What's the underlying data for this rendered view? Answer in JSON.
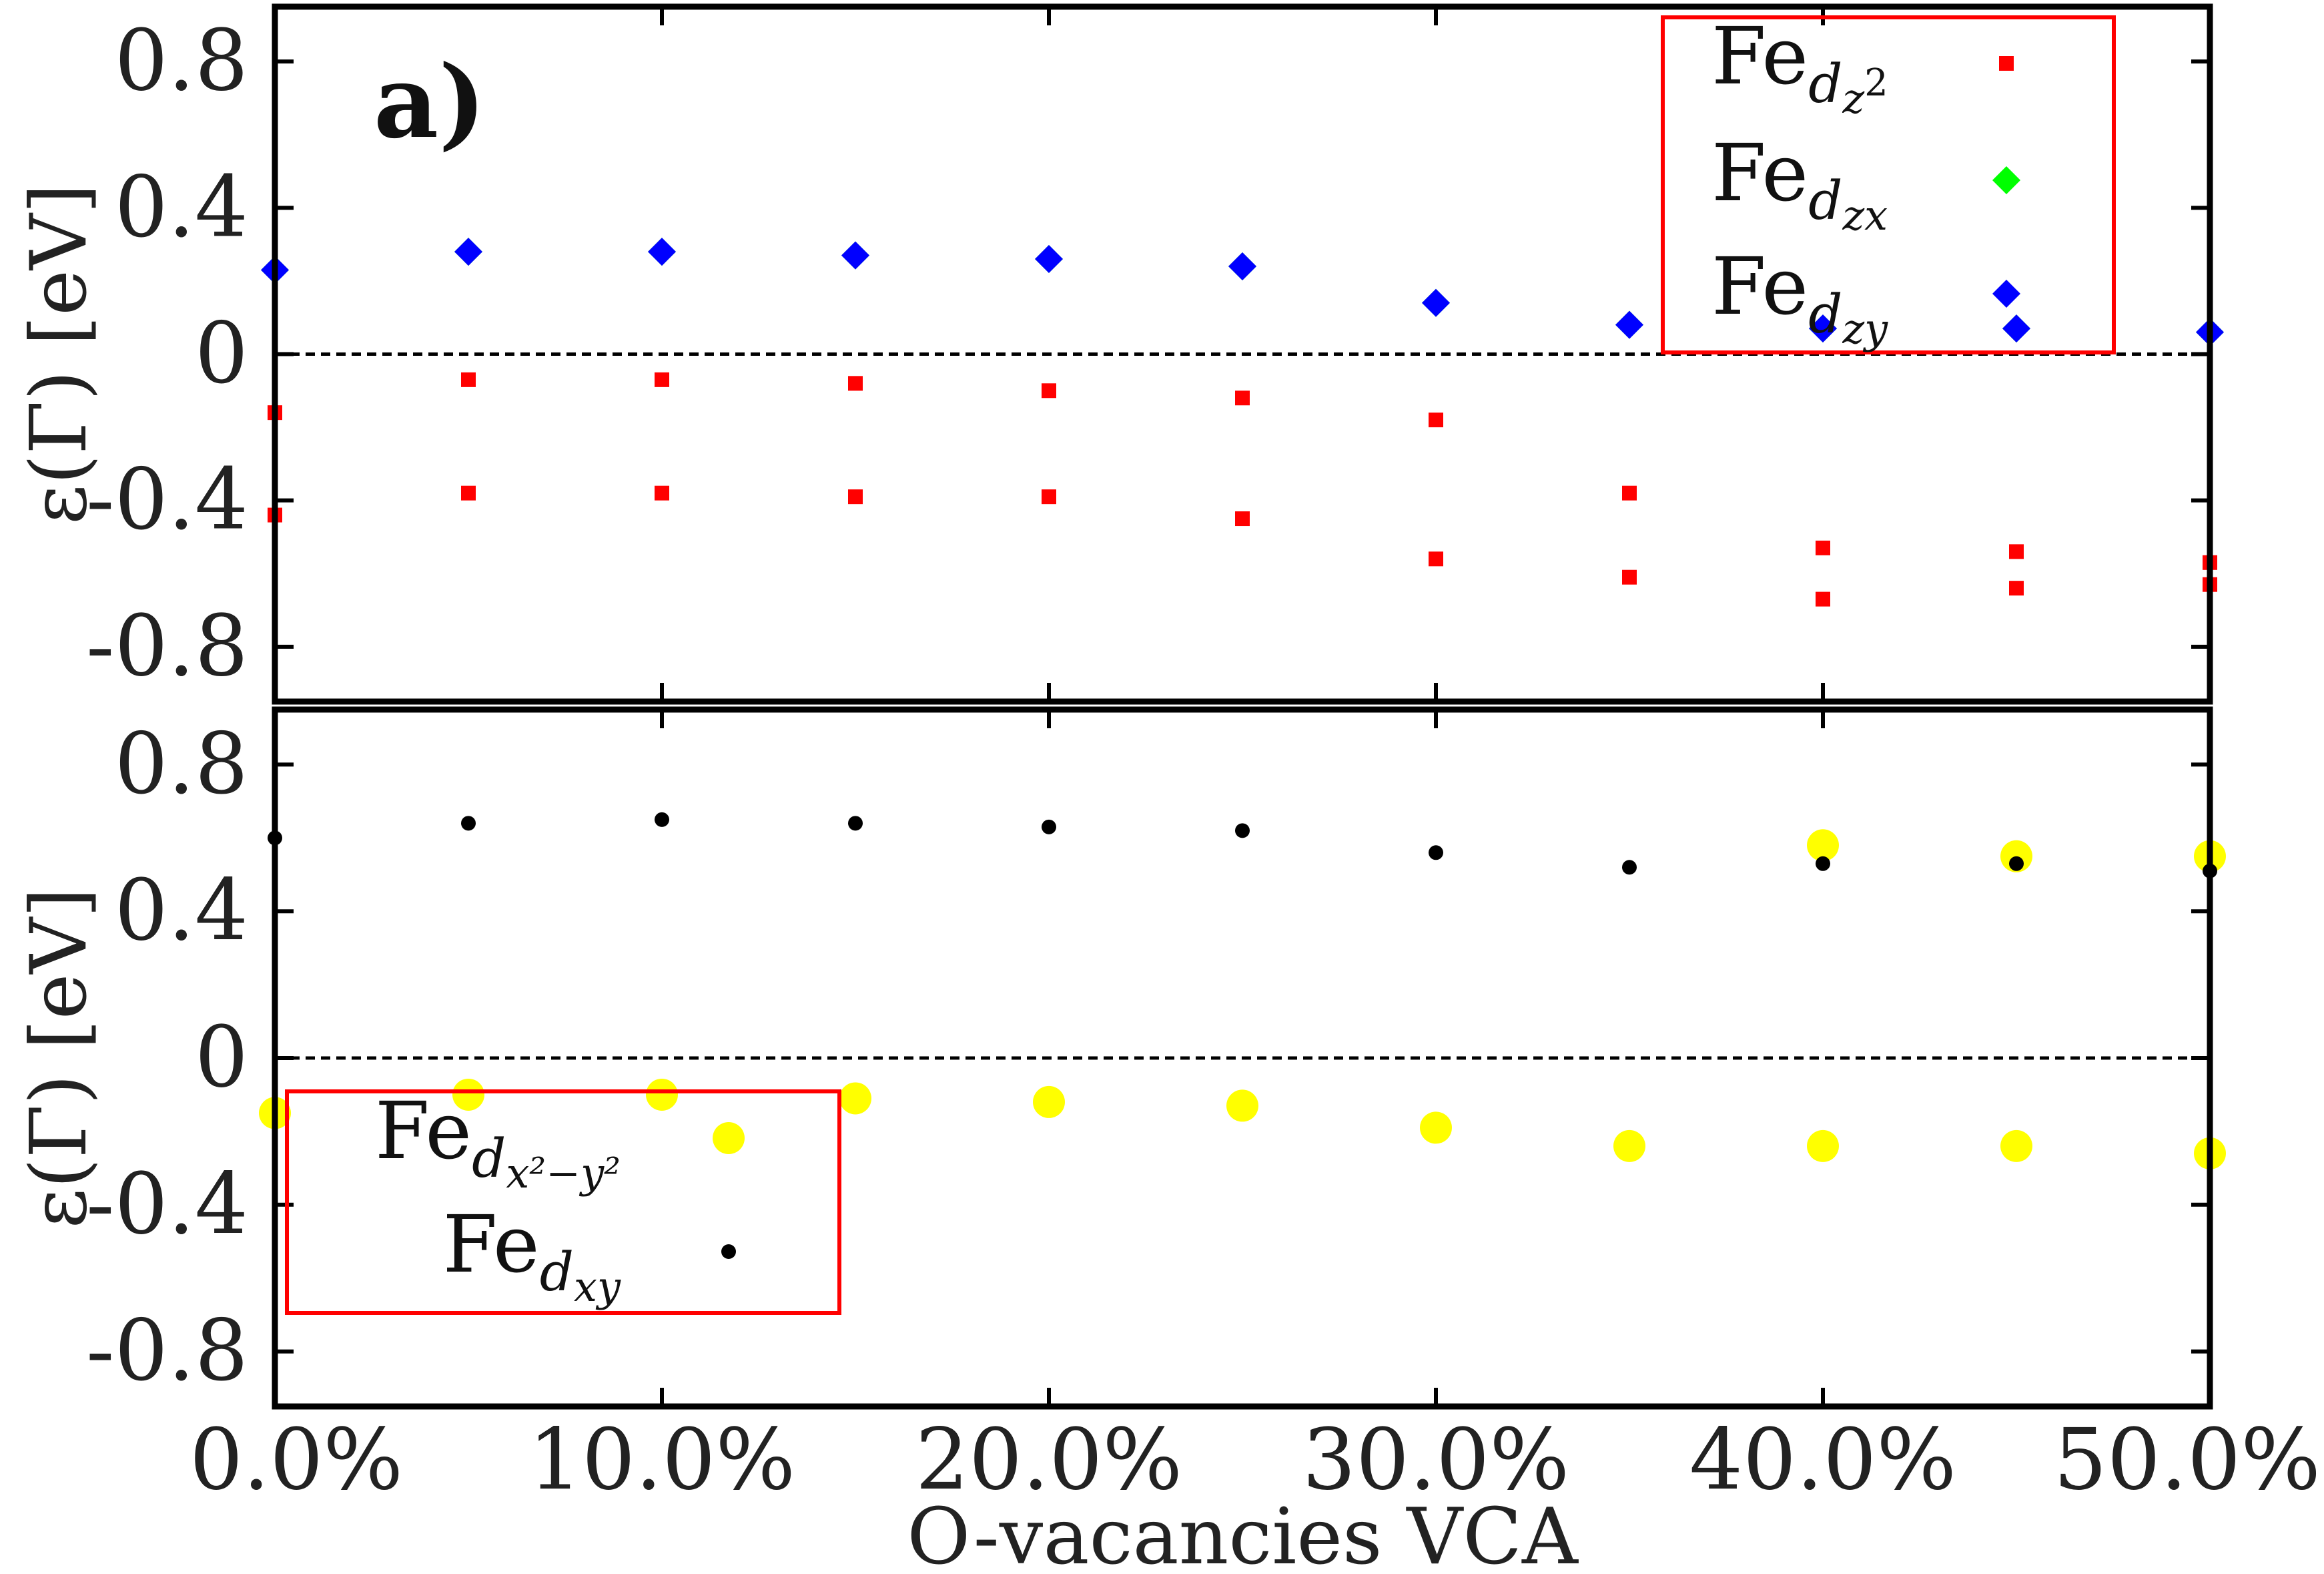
{
  "chart_data": {
    "type": "scatter",
    "x_label": "O-vacancies VCA",
    "x_range": [
      0,
      50
    ],
    "x_ticks": [
      "0.0%",
      "10.0%",
      "20.0%",
      "30.0%",
      "40.0%",
      "50.0%"
    ],
    "panels": [
      {
        "id": "top",
        "label": "a)",
        "y_label": "ε(Γ) [eV]",
        "y_range": [
          -0.95,
          0.95
        ],
        "y_ticks": [
          "0.8",
          "0.4",
          "0",
          "-0.4",
          "-0.8"
        ],
        "legend": {
          "position": "top-right",
          "entries": [
            {
              "base": "Fe",
              "sub": "d",
              "subsub": "z",
              "sup": "2",
              "color": "#ff0000",
              "marker": "square"
            },
            {
              "base": "Fe",
              "sub": "d",
              "subsub": "zx",
              "sup": "",
              "color": "#00ff00",
              "marker": "diamond"
            },
            {
              "base": "Fe",
              "sub": "d",
              "subsub": "zy",
              "sup": "",
              "color": "#0000ff",
              "marker": "diamond"
            }
          ]
        },
        "series": [
          {
            "name": "Fe_dz2 (upper)",
            "color": "#ff0000",
            "marker": "square",
            "x": [
              0,
              5,
              10,
              15,
              20,
              25,
              30,
              35,
              40,
              45,
              50
            ],
            "y": [
              -0.16,
              -0.07,
              -0.07,
              -0.08,
              -0.1,
              -0.12,
              -0.18,
              -0.38,
              -0.53,
              -0.54,
              -0.57
            ]
          },
          {
            "name": "Fe_dz2 (lower)",
            "color": "#ff0000",
            "marker": "square",
            "x": [
              0,
              5,
              10,
              15,
              20,
              25,
              30,
              35,
              40,
              45,
              50
            ],
            "y": [
              -0.44,
              -0.38,
              -0.38,
              -0.39,
              -0.39,
              -0.45,
              -0.56,
              -0.61,
              -0.67,
              -0.64,
              -0.63
            ]
          },
          {
            "name": "Fe_dzx",
            "color": "#00ff00",
            "marker": "diamond",
            "x": [
              0,
              5,
              10,
              15,
              20,
              25,
              30,
              35,
              40,
              45,
              50
            ],
            "y": [
              0.23,
              0.28,
              0.28,
              0.27,
              0.26,
              0.24,
              0.14,
              0.08,
              0.07,
              0.07,
              0.06
            ]
          },
          {
            "name": "Fe_dzy",
            "color": "#0000ff",
            "marker": "diamond",
            "x": [
              0,
              5,
              10,
              15,
              20,
              25,
              30,
              35,
              40,
              45,
              50
            ],
            "y": [
              0.23,
              0.28,
              0.28,
              0.27,
              0.26,
              0.24,
              0.14,
              0.08,
              0.07,
              0.07,
              0.06
            ]
          }
        ]
      },
      {
        "id": "bottom",
        "label": "",
        "y_label": "ε(Γ) [eV]",
        "y_range": [
          -0.95,
          0.95
        ],
        "y_ticks": [
          "0.8",
          "0.4",
          "0",
          "-0.4",
          "-0.8"
        ],
        "legend": {
          "position": "bottom-left",
          "entries": [
            {
              "base": "Fe",
              "sub": "d",
              "subsub": "x²−y²",
              "sup": "",
              "color": "#ffff00",
              "marker": "circle"
            },
            {
              "base": "Fe",
              "sub": "d",
              "subsub": "xy",
              "sup": "",
              "color": "#000000",
              "marker": "dot"
            }
          ]
        },
        "series": [
          {
            "name": "Fe_dx2-y2 (upper)",
            "color": "#ffff00",
            "marker": "circle",
            "x": [
              40,
              45,
              50
            ],
            "y": [
              0.58,
              0.55,
              0.55
            ]
          },
          {
            "name": "Fe_dx2-y2 (lower)",
            "color": "#ffff00",
            "marker": "circle",
            "x": [
              0,
              5,
              10,
              15,
              20,
              25,
              30,
              35,
              40,
              45,
              50
            ],
            "y": [
              -0.15,
              -0.1,
              -0.1,
              -0.11,
              -0.12,
              -0.13,
              -0.19,
              -0.24,
              -0.24,
              -0.24,
              -0.26
            ]
          },
          {
            "name": "Fe_dxy",
            "color": "#000000",
            "marker": "dot",
            "x": [
              0,
              5,
              10,
              15,
              20,
              25,
              30,
              35,
              40,
              45,
              50
            ],
            "y": [
              0.6,
              0.64,
              0.65,
              0.64,
              0.63,
              0.62,
              0.56,
              0.52,
              0.53,
              0.53,
              0.51
            ]
          }
        ]
      }
    ]
  }
}
